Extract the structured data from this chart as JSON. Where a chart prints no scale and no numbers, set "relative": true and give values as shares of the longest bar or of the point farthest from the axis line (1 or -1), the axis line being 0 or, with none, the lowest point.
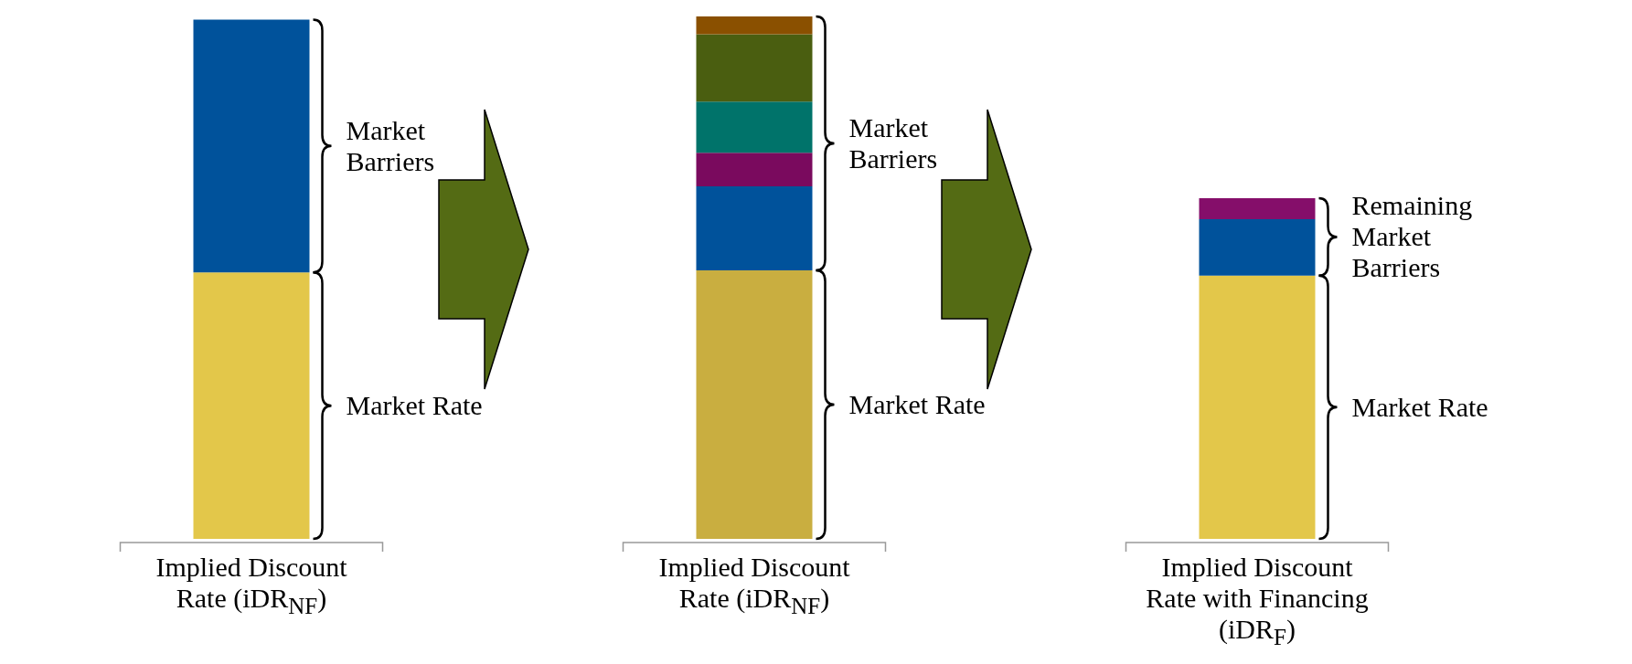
{
  "chart_data": {
    "type": "bar",
    "relative": true,
    "stacked": true,
    "categories": [
      "Implied Discount Rate (iDR$_{NF}$)",
      "Implied Discount Rate (iDR$_{NF}$)",
      "Implied Discount Rate with Financing (iDR$_{F}$)"
    ],
    "series": [
      {
        "colors": [
          "#e3c74a",
          "#c9ae40",
          "#e3c74a"
        ],
        "values": [
          0.51,
          0.514,
          0.504
        ]
      },
      {
        "color": "#00529b",
        "values": [
          0.484,
          0.161,
          0.108
        ]
      },
      {
        "colors": [
          null,
          "#7a0a5e",
          "#850e6a"
        ],
        "values": [
          null,
          0.064,
          0.04
        ]
      },
      {
        "color": "#00736a",
        "values": [
          null,
          0.098,
          null
        ]
      },
      {
        "color": "#4a5e10",
        "values": [
          null,
          0.129,
          null
        ]
      },
      {
        "color": "#8a5000",
        "values": [
          null,
          0.034,
          null
        ]
      }
    ],
    "annotations": [
      "Market Rate",
      "Market Barriers",
      "Market Rate",
      "Market Barriers",
      "Market Rate",
      "Remaining Market Barriers"
    ]
  }
}
